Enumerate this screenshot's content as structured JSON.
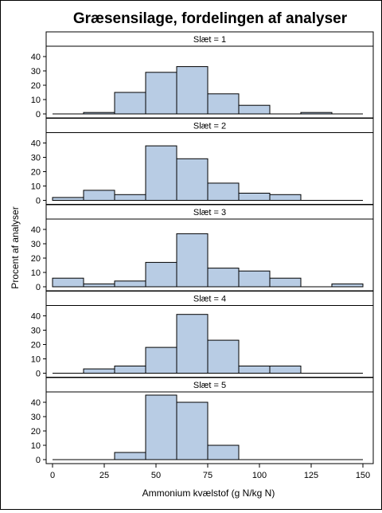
{
  "chart_data": {
    "type": "bar",
    "title": "Græsensilage, fordelingen af analyser",
    "xlabel": "Ammonium kvælstof (g N/kg N)",
    "ylabel": "Procent af analyser",
    "xlim": [
      0,
      150
    ],
    "ylim": [
      0,
      45
    ],
    "x_ticks": [
      "0",
      "25",
      "50",
      "75",
      "100",
      "125",
      "150"
    ],
    "y_ticks": [
      "0",
      "10",
      "20",
      "30",
      "40"
    ],
    "bin_edges": [
      0,
      15,
      30,
      45,
      60,
      75,
      90,
      105,
      120,
      135,
      150
    ],
    "panels": [
      {
        "label": "Slæt = 1",
        "values": [
          0,
          1,
          15,
          29,
          33,
          14,
          6,
          0,
          1,
          0
        ]
      },
      {
        "label": "Slæt = 2",
        "values": [
          2,
          7,
          4,
          38,
          29,
          12,
          5,
          4,
          0,
          0
        ]
      },
      {
        "label": "Slæt = 3",
        "values": [
          6,
          2,
          4,
          17,
          37,
          13,
          11,
          6,
          0,
          2
        ]
      },
      {
        "label": "Slæt = 4",
        "values": [
          0,
          3,
          5,
          18,
          41,
          23,
          5,
          5,
          0,
          0
        ]
      },
      {
        "label": "Slæt = 5",
        "values": [
          0,
          0,
          5,
          45,
          40,
          10,
          0,
          0,
          0,
          0
        ]
      }
    ],
    "colors": {
      "bar_fill": "#b8cce4",
      "bar_stroke": "#000000",
      "header_fill": "#ffffff"
    },
    "grid": false,
    "legend": "none"
  }
}
